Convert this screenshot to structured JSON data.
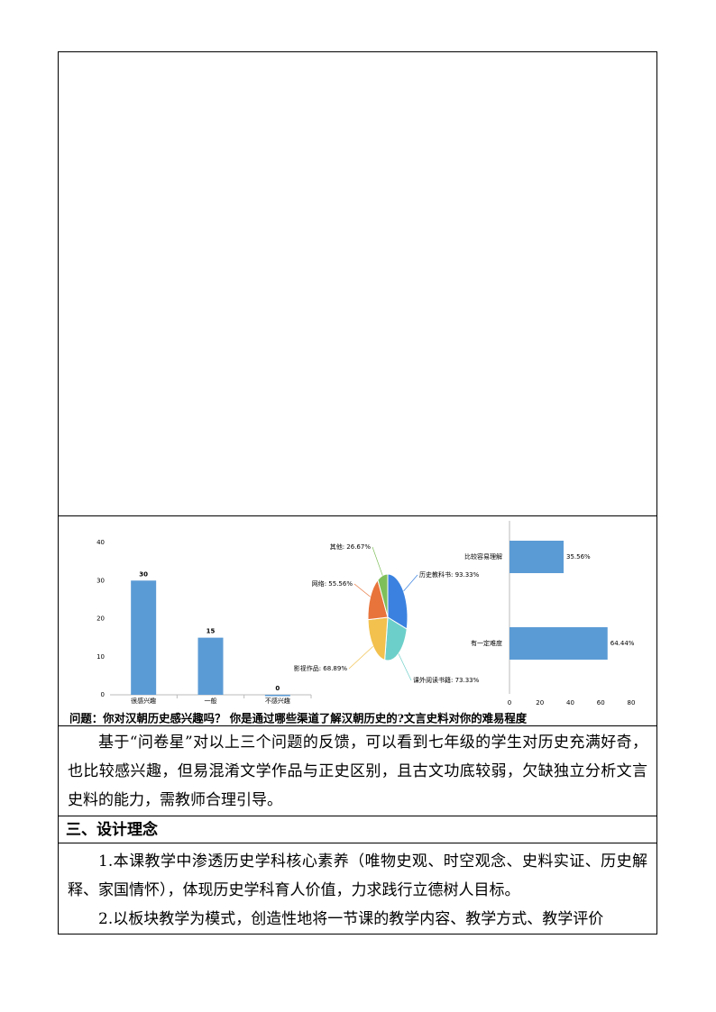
{
  "document": {
    "caption": "问题：你对汉朝历史感兴趣吗？ 你是通过哪些渠道了解汉朝历史的?文言史料对你的难易程度",
    "paragraph": "基于“问卷星”对以上三个问题的反馈，可以看到七年级的学生对历史充满好奇，也比较感兴趣，但易混淆文学作品与正史区别，且古文功底较弱，欠缺独立分析文言史料的能力，需教师合理引导。",
    "section_title": "三、设计理念",
    "items": [
      "1.本课教学中渗透历史学科核心素养（唯物史观、时空观念、史料实证、历史解释、家国情怀），体现历史学科育人价值，力求践行立德树人目标。",
      "2.以板块教学为模式，创造性地将一节课的教学内容、教学方式、教学评价"
    ]
  },
  "chart_data": [
    {
      "type": "bar",
      "categories": [
        "很感兴趣",
        "一般",
        "不感兴趣"
      ],
      "values": [
        30,
        15,
        0
      ],
      "color": "#5b9bd5",
      "ylim": [
        0,
        40
      ],
      "yticks": [
        0,
        10,
        20,
        30,
        40
      ]
    },
    {
      "type": "pie",
      "categories": [
        "历史教科书",
        "课外阅读书籍",
        "影视作品",
        "网络",
        "其他"
      ],
      "values": [
        93.33,
        73.33,
        68.89,
        55.56,
        26.67
      ],
      "value_labels": [
        "历史教科书: 93.33%",
        "课外阅读书籍: 73.33%",
        "影视作品: 68.89%",
        "网络: 55.56%",
        "其他: 26.67%"
      ],
      "colors": [
        "#3b82e0",
        "#6dcfc9",
        "#f2c14e",
        "#e8743b",
        "#7fbf5a"
      ]
    },
    {
      "type": "hbar",
      "categories": [
        "比较容易理解",
        "有一定难度"
      ],
      "values": [
        35.56,
        64.44
      ],
      "value_labels": [
        "35.56%",
        "64.44%"
      ],
      "color": "#5b9bd5",
      "xlim": [
        0,
        80
      ],
      "xticks": [
        0,
        20,
        40,
        60,
        80
      ]
    }
  ]
}
